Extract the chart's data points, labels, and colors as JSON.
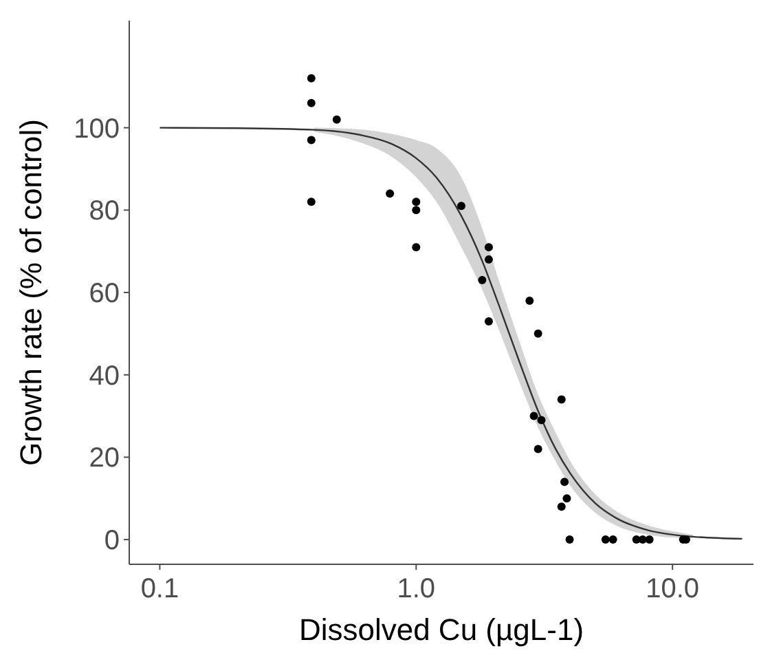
{
  "chart_data": {
    "type": "scatter",
    "xlabel": "Dissolved Cu (µgL-1)",
    "ylabel": "Growth rate (% of control)",
    "log": "x",
    "grid": false,
    "xlim": [
      0.076,
      20.7
    ],
    "xticks": [
      {
        "value": 0.1,
        "label": "0.1"
      },
      {
        "value": 1,
        "label": "1.0"
      },
      {
        "value": 10,
        "label": "10.0"
      }
    ],
    "ylim": [
      -6,
      126
    ],
    "yticks": [
      0,
      20,
      40,
      60,
      80,
      100
    ],
    "series": [
      {
        "marker": "circle",
        "color": "#000000",
        "x": [
          0.39,
          0.39,
          0.49,
          0.39,
          0.39,
          0.79,
          1.0,
          1.0,
          1.0,
          1.5,
          1.92,
          1.92,
          1.81,
          1.92,
          2.77,
          2.99,
          3.69,
          2.88,
          3.08,
          2.99,
          3.79,
          3.87,
          3.69,
          3.97,
          5.48,
          5.86,
          7.23,
          7.65,
          8.13,
          11.0,
          11.3
        ],
        "values": [
          112,
          106,
          102,
          97,
          82,
          84,
          82,
          80,
          71,
          81,
          71,
          68,
          63,
          53,
          58,
          50,
          34,
          30,
          29,
          22,
          14,
          10,
          8,
          0,
          0,
          0,
          0,
          0,
          0,
          0,
          0
        ]
      },
      {
        "type": "line",
        "marker": "none",
        "color": "#333333",
        "x": [
          0.1,
          0.2,
          0.4,
          0.6,
          0.8,
          1.0,
          1.2,
          1.5,
          1.8,
          2.1,
          2.5,
          3.0,
          3.5,
          4.0,
          5.0,
          6.0,
          8.0,
          10,
          12,
          18.7
        ],
        "values": [
          100,
          99.9,
          99.5,
          98.3,
          96.1,
          92.6,
          87.9,
          78.6,
          68,
          57,
          44,
          31,
          22,
          16,
          8.8,
          5.3,
          2.3,
          1.2,
          0.7,
          0.2
        ],
        "lower": [
          null,
          null,
          99,
          96.5,
          93,
          88,
          82,
          71,
          61,
          51,
          39,
          27,
          19,
          13,
          6.5,
          3.5,
          1.2,
          0.5,
          0.3,
          null
        ],
        "upper": [
          null,
          null,
          100,
          99.6,
          98.5,
          97,
          95,
          88,
          76,
          63,
          49,
          35,
          26,
          19,
          11,
          7,
          3.5,
          2,
          1.2,
          null
        ]
      }
    ]
  }
}
